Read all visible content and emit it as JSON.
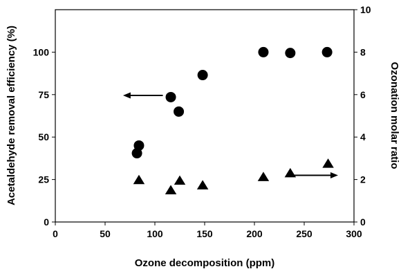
{
  "chart_data": {
    "type": "scatter",
    "title": "",
    "xlabel": "Ozone decomposition (ppm)",
    "ylabel_left": "Acetaldehyde removal efficiency (%)",
    "ylabel_right": "Ozonation molar ratio",
    "xlim": [
      0,
      300
    ],
    "ylim_left": [
      0,
      125
    ],
    "ylim_right": [
      0,
      10
    ],
    "x_ticks": [
      0,
      50,
      100,
      150,
      200,
      250,
      300
    ],
    "y_left_ticks": [
      0,
      25,
      50,
      75,
      100
    ],
    "y_right_ticks": [
      0,
      2,
      4,
      6,
      8,
      10
    ],
    "grid": false,
    "series": [
      {
        "axis": "left",
        "marker": "circle",
        "color": "#000000",
        "x": [
          82,
          84,
          116,
          124,
          148,
          209,
          236,
          273
        ],
        "y": [
          40.5,
          45,
          73.5,
          65,
          86.5,
          100,
          99.5,
          100
        ]
      },
      {
        "axis": "right",
        "marker": "triangle",
        "color": "#000000",
        "x": [
          84,
          116,
          125,
          148,
          209,
          236,
          274
        ],
        "y": [
          1.98,
          1.5,
          1.95,
          1.73,
          2.12,
          2.3,
          2.75
        ]
      }
    ],
    "annotations": [
      {
        "type": "arrow",
        "direction": "left",
        "axis": "left",
        "y": 74.5,
        "x_from": 108,
        "x_to": 68
      },
      {
        "type": "arrow",
        "direction": "right",
        "axis": "right",
        "y": 2.2,
        "x_from": 240,
        "x_to": 284
      }
    ]
  }
}
